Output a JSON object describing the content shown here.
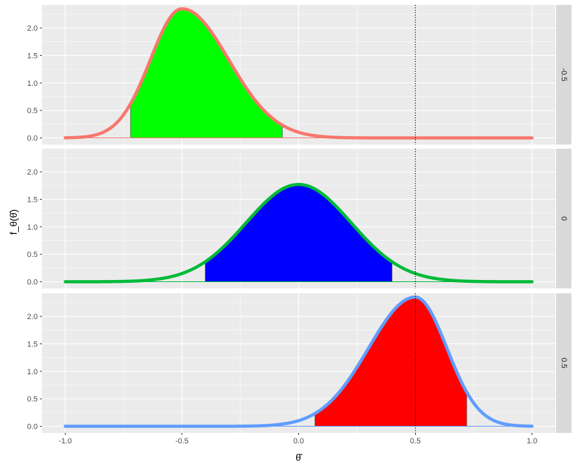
{
  "chart_data": {
    "type": "area",
    "xlabel": "θ̂",
    "ylabel": "f_θ(θ̂)",
    "xlim": [
      -1.1,
      1.1
    ],
    "ylim": [
      -0.12,
      2.42
    ],
    "x_ticks": [
      "-1.0",
      "-0.5",
      "0.0",
      "0.5",
      "1.0"
    ],
    "x_tick_values": [
      -1.0,
      -0.5,
      0.0,
      0.5,
      1.0
    ],
    "y_ticks": [
      "0.0",
      "0.5",
      "1.0",
      "1.5",
      "2.0"
    ],
    "y_tick_values": [
      0.0,
      0.5,
      1.0,
      1.5,
      2.0
    ],
    "vline_x": 0.5,
    "vline_style": "dotted",
    "grid": true,
    "facets": [
      {
        "strip_label": "-0.5",
        "mode": -0.5,
        "peak_density": 2.35,
        "sd_left": 0.135,
        "sd_right": 0.2,
        "shaded_range": [
          -0.72,
          -0.07
        ],
        "line_color": "#F8766D",
        "fill_color": "#00FF00"
      },
      {
        "strip_label": "0",
        "mode": 0.0,
        "peak_density": 1.77,
        "sd_left": 0.225,
        "sd_right": 0.225,
        "shaded_range": [
          -0.4,
          0.4
        ],
        "line_color": "#00BA38",
        "fill_color": "#0000FF"
      },
      {
        "strip_label": "0.5",
        "mode": 0.5,
        "peak_density": 2.35,
        "sd_left": 0.2,
        "sd_right": 0.135,
        "shaded_range": [
          0.07,
          0.72
        ],
        "line_color": "#619CFF",
        "fill_color": "#FF0000"
      }
    ]
  }
}
